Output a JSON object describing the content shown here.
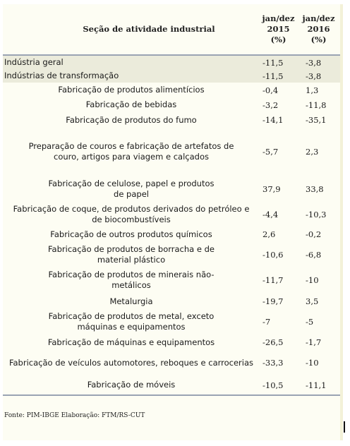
{
  "table": {
    "headers": {
      "section": "Seção de atividade industrial",
      "col2015_line1": "jan/dez",
      "col2015_line2": "2015 (%)",
      "col2016_line1": "jan/dez 2016",
      "col2016_line2": "(%)"
    },
    "rows": [
      {
        "label": "Indústria geral",
        "v2015": "-11,5",
        "v2016": "-3,8"
      },
      {
        "label": "Indústrias de transformação",
        "v2015": "-11,5",
        "v2016": "-3,8"
      },
      {
        "label": "Fabricação de produtos alimentícios",
        "v2015": "-0,4",
        "v2016": "1,3"
      },
      {
        "label": "Fabricação de bebidas",
        "v2015": "-3,2",
        "v2016": "-11,8"
      },
      {
        "label": "Fabricação de produtos do fumo",
        "v2015": "-14,1",
        "v2016": "-35,1"
      },
      {
        "label": "Preparação de couros e fabricação de artefatos de couro, artigos para viagem e calçados",
        "v2015": "-5,7",
        "v2016": "2,3"
      },
      {
        "label": "Fabricação de celulose, papel e produtos de papel",
        "v2015": "37,9",
        "v2016": "33,8"
      },
      {
        "label": "Fabricação de coque, de produtos derivados do petróleo e de biocombustíveis",
        "v2015": "-4,4",
        "v2016": "-10,3"
      },
      {
        "label": "Fabricação de outros produtos químicos",
        "v2015": "2,6",
        "v2016": "-0,2"
      },
      {
        "label": "Fabricação de produtos de borracha e de material plástico",
        "v2015": "-10,6",
        "v2016": "-6,8"
      },
      {
        "label": "Fabricação de produtos de minerais não-metálicos",
        "v2015": "-11,7",
        "v2016": "-10"
      },
      {
        "label": "Metalurgia",
        "v2015": "-19,7",
        "v2016": "3,5"
      },
      {
        "label": "Fabricação de produtos de metal, exceto máquinas e equipamentos",
        "v2015": "-7",
        "v2016": "-5"
      },
      {
        "label": "Fabricação de máquinas e equipamentos",
        "v2015": "-26,5",
        "v2016": "-1,7"
      },
      {
        "label": "Fabricação de veículos automotores, reboques e carrocerias",
        "v2015": "-33,3",
        "v2016": "-10"
      },
      {
        "label": "Fabricação de móveis",
        "v2015": "-10,5",
        "v2016": "-11,1"
      }
    ]
  },
  "footer": {
    "source": "Fonte: PIM-IBGE Elaboração: FTM/RS-CUT"
  }
}
